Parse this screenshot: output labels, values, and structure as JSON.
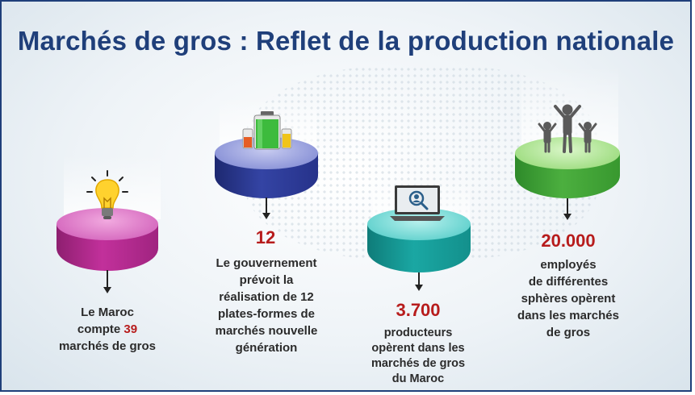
{
  "title": "Marchés de gros : Reflet de la production nationale",
  "colors": {
    "title": "#1f3f7a",
    "highlight": "#b71c1c",
    "magenta": "#c2309b",
    "navy": "#2c3a90",
    "teal": "#1aa7a3",
    "green": "#4caf3f"
  },
  "items": [
    {
      "icon": "lightbulb-icon",
      "prefix": "Le Maroc",
      "line2_before": "compte ",
      "number": "39",
      "line3": "marchés de gros"
    },
    {
      "icon": "battery-icon",
      "number": "12",
      "lines": [
        "Le gouvernement",
        "prévoit la",
        "réalisation de 12",
        "plates-formes de",
        "marchés nouvelle",
        "génération"
      ]
    },
    {
      "icon": "monitor-user-icon",
      "number": "3.700",
      "lines": [
        "producteurs",
        "opèrent dans les",
        "marchés de gros",
        "du Maroc"
      ]
    },
    {
      "icon": "people-icon",
      "number": "20.000",
      "lines": [
        "employés",
        "de différentes",
        "sphères opèrent",
        "dans les marchés",
        "de gros"
      ]
    }
  ]
}
